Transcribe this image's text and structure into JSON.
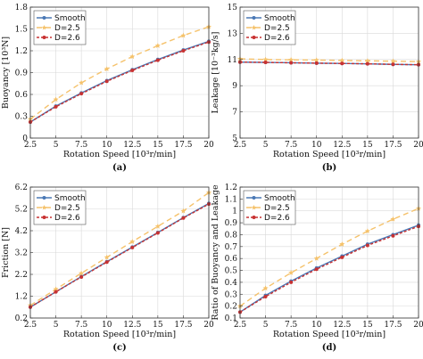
{
  "chart_data": [
    {
      "id": "a",
      "type": "line",
      "caption": "(a)",
      "xlabel": "Rotation Speed [10³r/min]",
      "ylabel": "Buoyancy [10³N]",
      "xlim": [
        2.5,
        20
      ],
      "ylim": [
        0,
        1.8
      ],
      "xticks": [
        "2.5",
        "5",
        "7.5",
        "10",
        "12.5",
        "15",
        "17.5",
        "20"
      ],
      "yticks": [
        "0",
        "0.3",
        "0.6",
        "0.9",
        "1.2",
        "1.5",
        "1.8"
      ],
      "grid": true,
      "legend_position": "top-left",
      "x": [
        2.5,
        5,
        7.5,
        10,
        12.5,
        15,
        17.5,
        20
      ],
      "series": [
        {
          "name": "Smooth",
          "values": [
            0.22,
            0.44,
            0.62,
            0.79,
            0.94,
            1.08,
            1.21,
            1.33
          ]
        },
        {
          "name": "D=2.5",
          "values": [
            0.26,
            0.53,
            0.76,
            0.95,
            1.12,
            1.27,
            1.41,
            1.53
          ]
        },
        {
          "name": "D=2.6",
          "values": [
            0.22,
            0.43,
            0.61,
            0.78,
            0.93,
            1.07,
            1.2,
            1.32
          ]
        }
      ]
    },
    {
      "id": "b",
      "type": "line",
      "caption": "(b)",
      "xlabel": "Rotation Speed [10³r/min]",
      "ylabel": "Leakage [10⁻³kg/s]",
      "xlim": [
        2.5,
        20
      ],
      "ylim": [
        5,
        15
      ],
      "xticks": [
        "2.5",
        "5",
        "7.5",
        "10",
        "12.5",
        "15",
        "17.5",
        "20"
      ],
      "yticks": [
        "5",
        "7",
        "9",
        "11",
        "13",
        "15"
      ],
      "grid": true,
      "legend_position": "top-left",
      "x": [
        2.5,
        5,
        7.5,
        10,
        12.5,
        15,
        17.5,
        20
      ],
      "series": [
        {
          "name": "Smooth",
          "values": [
            10.8,
            10.78,
            10.75,
            10.72,
            10.7,
            10.67,
            10.63,
            10.6
          ]
        },
        {
          "name": "D=2.5",
          "values": [
            11.05,
            11.0,
            10.98,
            10.96,
            10.93,
            10.9,
            10.87,
            10.84
          ]
        },
        {
          "name": "D=2.6",
          "values": [
            10.8,
            10.78,
            10.75,
            10.72,
            10.7,
            10.67,
            10.63,
            10.6
          ]
        }
      ]
    },
    {
      "id": "c",
      "type": "line",
      "caption": "(c)",
      "xlabel": "Rotation Speed [10³r/min]",
      "ylabel": "Friction [N]",
      "xlim": [
        2.5,
        20
      ],
      "ylim": [
        0.2,
        6.2
      ],
      "xticks": [
        "2.5",
        "5",
        "7.5",
        "10",
        "12.5",
        "15",
        "17.5",
        "20"
      ],
      "yticks": [
        "0.2",
        "1.2",
        "2.2",
        "3.2",
        "4.2",
        "5.2",
        "6.2"
      ],
      "grid": true,
      "legend_position": "top-left",
      "x": [
        2.5,
        5,
        7.5,
        10,
        12.5,
        15,
        17.5,
        20
      ],
      "series": [
        {
          "name": "Smooth",
          "values": [
            0.7,
            1.4,
            2.1,
            2.78,
            3.45,
            4.12,
            4.8,
            5.45
          ]
        },
        {
          "name": "D=2.5",
          "values": [
            0.78,
            1.52,
            2.25,
            2.98,
            3.7,
            4.4,
            5.1,
            5.95
          ]
        },
        {
          "name": "D=2.6",
          "values": [
            0.7,
            1.4,
            2.08,
            2.76,
            3.43,
            4.1,
            4.78,
            5.42
          ]
        }
      ]
    },
    {
      "id": "d",
      "type": "line",
      "caption": "(d)",
      "xlabel": "Rotation Speed [10³r/min]",
      "ylabel": "Ratio of Buoyancy and Leakage",
      "xlim": [
        2.5,
        20
      ],
      "ylim": [
        0.1,
        1.2
      ],
      "xticks": [
        "2.5",
        "5",
        "7.5",
        "10",
        "12.5",
        "15",
        "17.5",
        "20"
      ],
      "yticks": [
        "0.1",
        "0.2",
        "0.3",
        "0.4",
        "0.5",
        "0.6",
        "0.7",
        "0.8",
        "0.9",
        "1",
        "1.1",
        "1.2"
      ],
      "grid": true,
      "legend_position": "top-left",
      "x": [
        2.5,
        5,
        7.5,
        10,
        12.5,
        15,
        17.5,
        20
      ],
      "series": [
        {
          "name": "Smooth",
          "values": [
            0.15,
            0.29,
            0.41,
            0.52,
            0.62,
            0.72,
            0.8,
            0.88
          ]
        },
        {
          "name": "D=2.5",
          "values": [
            0.2,
            0.35,
            0.48,
            0.6,
            0.72,
            0.83,
            0.93,
            1.02
          ]
        },
        {
          "name": "D=2.6",
          "values": [
            0.15,
            0.28,
            0.4,
            0.51,
            0.61,
            0.71,
            0.79,
            0.87
          ]
        }
      ]
    }
  ],
  "series_style": [
    {
      "color": "#4a78b5",
      "dash": "",
      "marker": "circle"
    },
    {
      "color": "#f5c26b",
      "dash": "6,4",
      "marker": "star"
    },
    {
      "color": "#c83232",
      "dash": "3,2",
      "marker": "circle"
    }
  ]
}
